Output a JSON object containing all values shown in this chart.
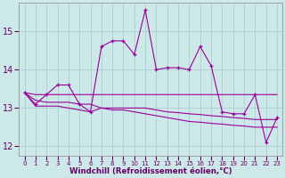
{
  "x": [
    0,
    1,
    2,
    3,
    4,
    5,
    6,
    7,
    8,
    9,
    10,
    11,
    12,
    13,
    14,
    15,
    16,
    17,
    18,
    19,
    20,
    21,
    22,
    23
  ],
  "line1": [
    13.4,
    13.1,
    13.35,
    13.6,
    13.6,
    13.1,
    12.9,
    14.6,
    14.75,
    14.75,
    14.4,
    15.55,
    14.0,
    14.05,
    14.05,
    14.0,
    14.6,
    14.1,
    12.9,
    12.85,
    12.85,
    13.35,
    12.1,
    12.75
  ],
  "line2": [
    13.4,
    13.35,
    13.35,
    13.35,
    13.35,
    13.35,
    13.35,
    13.35,
    13.35,
    13.35,
    13.35,
    13.35,
    13.35,
    13.35,
    13.35,
    13.35,
    13.35,
    13.35,
    13.35,
    13.35,
    13.35,
    13.35,
    13.35,
    13.35
  ],
  "line3": [
    13.4,
    13.2,
    13.15,
    13.15,
    13.15,
    13.1,
    13.1,
    13.0,
    13.0,
    13.0,
    13.0,
    13.0,
    12.95,
    12.9,
    12.88,
    12.85,
    12.83,
    12.8,
    12.78,
    12.75,
    12.73,
    12.7,
    12.7,
    12.7
  ],
  "line4": [
    13.4,
    13.05,
    13.05,
    13.05,
    13.0,
    12.95,
    12.9,
    13.0,
    12.95,
    12.95,
    12.9,
    12.85,
    12.8,
    12.75,
    12.7,
    12.65,
    12.63,
    12.6,
    12.58,
    12.55,
    12.53,
    12.5,
    12.5,
    12.5
  ],
  "color": "#990099",
  "bg_color": "#cde8e8",
  "grid_color": "#aacfcf",
  "ylim": [
    11.75,
    15.75
  ],
  "yticks": [
    12,
    13,
    14,
    15
  ],
  "xlabel": "Windchill (Refroidissement éolien,°C)"
}
